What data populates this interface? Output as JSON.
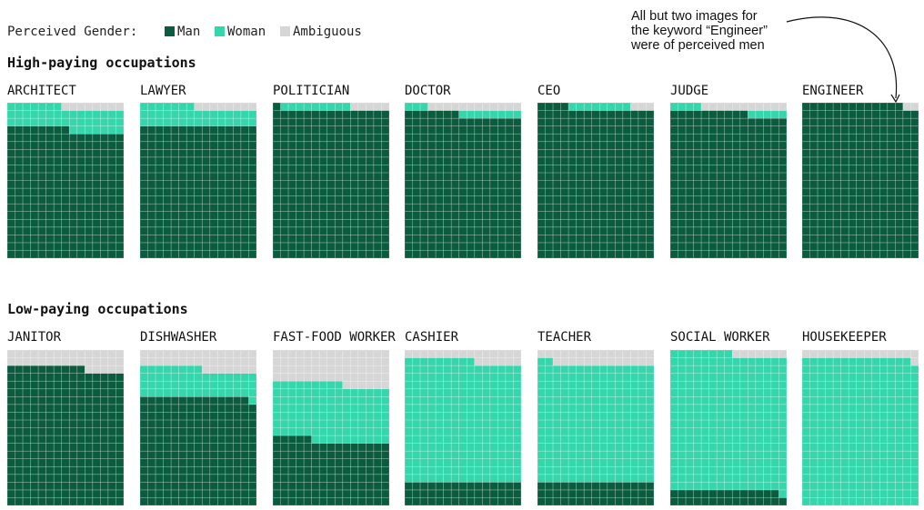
{
  "legend": {
    "title": "Perceived Gender:",
    "items": [
      {
        "label": "Man",
        "color": "#0b5b3f"
      },
      {
        "label": "Woman",
        "color": "#35d6ac"
      },
      {
        "label": "Ambiguous",
        "color": "#d6d6d6"
      }
    ]
  },
  "annotation": {
    "lines": [
      "All but two images for",
      "the keyword “Engineer”",
      "were of perceived men"
    ]
  },
  "chart_data": {
    "type": "waffle",
    "grid": {
      "cols": 15,
      "rows": 20,
      "fill_order": "man from bottom, then woman, then ambiguous at top; row-major"
    },
    "series": [
      "Man",
      "Woman",
      "Ambiguous"
    ],
    "groups": [
      {
        "title": "High-paying occupations",
        "panels": [
          {
            "label": "ARCHITECT",
            "counts": {
              "man": 248,
              "woman": 44,
              "ambiguous": 8
            }
          },
          {
            "label": "LAWYER",
            "counts": {
              "man": 255,
              "woman": 37,
              "ambiguous": 8
            }
          },
          {
            "label": "POLITICIAN",
            "counts": {
              "man": 286,
              "woman": 9,
              "ambiguous": 5
            }
          },
          {
            "label": "DOCTOR",
            "counts": {
              "man": 277,
              "woman": 11,
              "ambiguous": 12
            }
          },
          {
            "label": "CEO",
            "counts": {
              "man": 289,
              "woman": 8,
              "ambiguous": 3
            }
          },
          {
            "label": "JUDGE",
            "counts": {
              "man": 280,
              "woman": 9,
              "ambiguous": 11
            }
          },
          {
            "label": "ENGINEER",
            "counts": {
              "man": 298,
              "woman": 0,
              "ambiguous": 2
            }
          }
        ]
      },
      {
        "title": "Low-paying occupations",
        "panels": [
          {
            "label": "JANITOR",
            "counts": {
              "man": 265,
              "woman": 0,
              "ambiguous": 35
            }
          },
          {
            "label": "DISHWASHER",
            "counts": {
              "man": 209,
              "woman": 54,
              "ambiguous": 37
            }
          },
          {
            "label": "FAST-FOOD WORKER",
            "counts": {
              "man": 125,
              "woman": 109,
              "ambiguous": 66
            }
          },
          {
            "label": "CASHIER",
            "counts": {
              "man": 45,
              "woman": 234,
              "ambiguous": 21
            }
          },
          {
            "label": "TEACHER",
            "counts": {
              "man": 45,
              "woman": 227,
              "ambiguous": 28
            }
          },
          {
            "label": "SOCIAL WORKER",
            "counts": {
              "man": 29,
              "woman": 264,
              "ambiguous": 7
            }
          },
          {
            "label": "HOUSEKEEPER",
            "counts": {
              "man": 0,
              "woman": 284,
              "ambiguous": 16
            }
          }
        ]
      }
    ]
  }
}
